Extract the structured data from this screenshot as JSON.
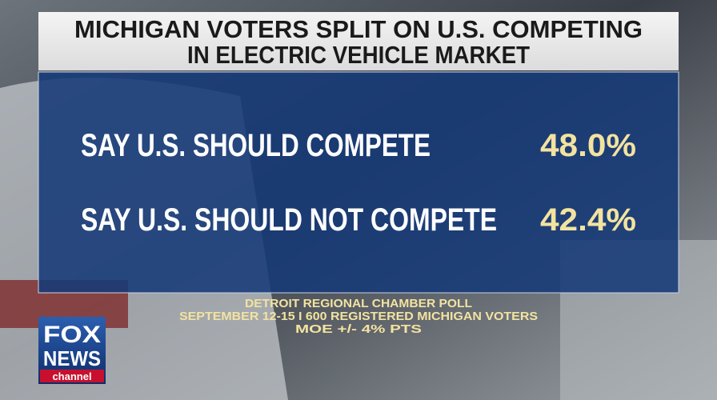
{
  "header": {
    "title_lines": [
      "MICHIGAN VOTERS SPLIT ON U.S. COMPETING",
      "IN ELECTRIC VEHICLE MARKET"
    ]
  },
  "rows": [
    {
      "label": "SAY U.S. SHOULD COMPETE",
      "value": "48.0%"
    },
    {
      "label": "SAY U.S. SHOULD NOT COMPETE",
      "value": "42.4%"
    }
  ],
  "source_lines": [
    "DETROIT REGIONAL CHAMBER POLL",
    "SEPTEMBER 12-15 I 600 REGISTERED MICHIGAN VOTERS",
    "MOE +/- 4% PTS"
  ],
  "logo": {
    "brand_top": "FOX",
    "brand_bottom": "NEWS",
    "channel": "channel"
  }
}
